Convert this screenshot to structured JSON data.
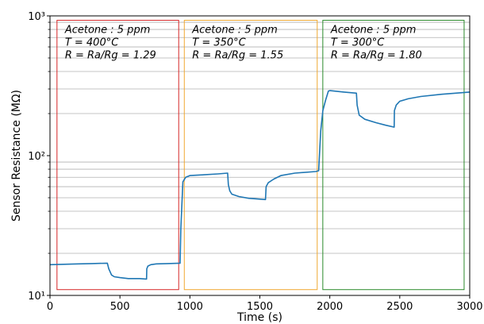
{
  "chart_data": {
    "type": "line",
    "xlabel": "Time (s)",
    "ylabel": "Sensor Resistance (MΩ)",
    "xlim": [
      0,
      3000
    ],
    "ylim": [
      10,
      1000
    ],
    "yscale": "log",
    "grid": "horizontal minor and major lines on log y-axis",
    "x_ticks": [
      "0",
      "500",
      "1000",
      "1500",
      "2000",
      "2500",
      "3000"
    ],
    "y_ticks": [
      "10¹",
      "10²",
      "10³"
    ],
    "series": [
      {
        "color": "#1f77b4",
        "x": [
          0,
          100,
          200,
          300,
          410,
          420,
          440,
          460,
          500,
          560,
          640,
          690,
          692,
          700,
          720,
          760,
          840,
          930,
          935,
          950,
          970,
          1000,
          1100,
          1200,
          1270,
          1275,
          1285,
          1300,
          1350,
          1420,
          1540,
          1545,
          1560,
          1600,
          1650,
          1750,
          1900,
          1920,
          1935,
          1950,
          1970,
          1990,
          2000,
          2100,
          2190,
          2195,
          2210,
          2250,
          2330,
          2400,
          2460,
          2462,
          2475,
          2500,
          2560,
          2650,
          2800,
          3000
        ],
        "y": [
          16.6,
          16.7,
          16.8,
          16.9,
          17.0,
          15.5,
          14.0,
          13.6,
          13.4,
          13.2,
          13.2,
          13.1,
          15.5,
          16.2,
          16.6,
          16.8,
          16.9,
          17.0,
          30,
          65,
          70,
          72,
          73,
          74,
          75,
          62,
          56,
          53,
          51,
          49.5,
          48.5,
          60,
          64,
          68,
          72,
          75,
          77,
          78,
          150,
          210,
          250,
          290,
          292,
          285,
          280,
          230,
          195,
          182,
          172,
          165,
          160,
          210,
          230,
          245,
          255,
          265,
          275,
          285
        ]
      }
    ],
    "annotations": [
      {
        "lines": [
          "Acetone : 5 ppm",
          "T = 400°C",
          "R = Ra/Rg = 1.29"
        ],
        "color": "#d62728",
        "x_range": [
          50,
          920
        ],
        "y_range": [
          11,
          930
        ]
      },
      {
        "lines": [
          "Acetone : 5 ppm",
          "T = 350°C",
          "R = Ra/Rg = 1.55"
        ],
        "color": "#f0a830",
        "x_range": [
          960,
          1910
        ],
        "y_range": [
          11,
          930
        ]
      },
      {
        "lines": [
          "Acetone : 5 ppm",
          "T = 300°C",
          "R = Ra/Rg = 1.80"
        ],
        "color": "#2a8a2a",
        "x_range": [
          1950,
          2960
        ],
        "y_range": [
          11,
          930
        ]
      }
    ]
  }
}
